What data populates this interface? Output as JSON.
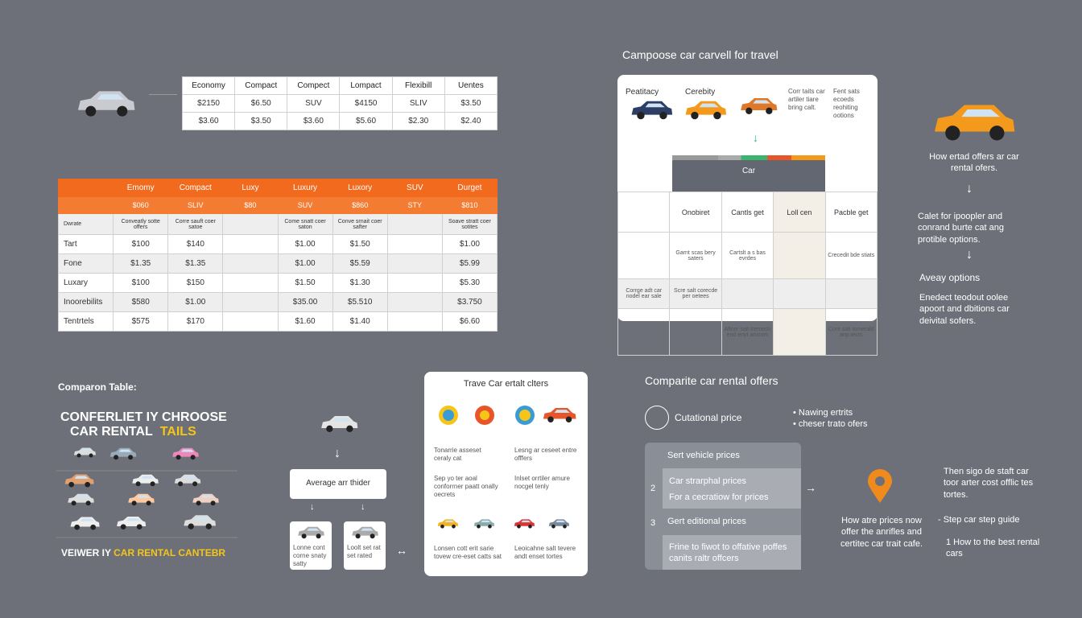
{
  "top_table": {
    "header": [
      "Economy",
      "Compact",
      "Compect",
      "Lompact",
      "Flexibill",
      "Uentes"
    ],
    "rows": [
      [
        "$2150",
        "$6.50",
        "SUV",
        "$4150",
        "SLIV",
        "$3.50"
      ],
      [
        "$3.60",
        "$3.50",
        "$3.60",
        "$5.60",
        "$2.30",
        "$2.40"
      ]
    ]
  },
  "main_table": {
    "header": [
      null,
      "Emomy",
      "Compact",
      "Luxy",
      "Luxury",
      "Luxory",
      "SUV",
      "Durget"
    ],
    "subheader": [
      null,
      "$060",
      "SLIV",
      "$80",
      "SUV",
      "$860",
      "STY",
      "$810"
    ],
    "rows": [
      [
        "Dwrate",
        "Conveatly sotte offers",
        "Corre sauft coer satoe",
        null,
        "Come snatt coer saton",
        "Conve srnait coer safter",
        null,
        "Soave stratt coer sotites"
      ],
      [
        "Tart",
        "$100",
        "$140",
        null,
        "$1.00",
        "$1.50",
        null,
        "$1.00"
      ],
      [
        "Fone",
        "$1.35",
        "$1.35",
        null,
        "$1.00",
        "$5.59",
        null,
        "$5.99"
      ],
      [
        "Luxary",
        "$100",
        "$150",
        null,
        "$1.50",
        "$1.30",
        null,
        "$5.30"
      ],
      [
        "Inoorebilits",
        "$580",
        "$1.00",
        null,
        "$35.00",
        "$5.510",
        null,
        "$3.750"
      ],
      [
        "Tentrtels",
        "$575",
        "$170",
        null,
        "$1.60",
        "$1.40",
        null,
        "$6.60"
      ]
    ]
  },
  "compare_panel": {
    "title": "Campoose car carvell for travel",
    "top_labels": [
      "Peatitacy",
      "Cerebity"
    ],
    "top_notes": [
      "Corr taits car artiler tiare bring calt.",
      "Fent sats ecoeds reohiting ootions"
    ],
    "bar_label": "Car",
    "header": [
      null,
      "Onobiret",
      "Cantls get",
      "Loll cen",
      "Pacble get"
    ],
    "rows": [
      [
        null,
        "Garnt scas bery saters",
        "Cartslt a s bas evrdes",
        null,
        "Crecedit bde stiats"
      ],
      [
        "Corrge adt car nodel ear sale",
        "Scre salt corecde per oetees",
        null,
        null,
        null
      ],
      [
        null,
        null,
        "Aflcer sait tremeds end enyt amcors",
        null,
        "Cont salt tomerald anp tects"
      ]
    ]
  },
  "side_notes": [
    "How ertad offers ar car rental ofers.",
    "Calet for ipoopler and conrand burte cat ang protible options.",
    "Aveay options",
    "Enedect teodout oolee apoort and dbitions car deivital sofers."
  ],
  "poster": {
    "label": "Comparon Table:",
    "headline": "CONFERLIET IY CHROOSE",
    "sub_white": "CAR RENTAL",
    "sub_yellow": "TAILS",
    "footer_white": "VEIWER IY",
    "footer_yellow": "CAR RENTAL CANTEBR"
  },
  "flow": {
    "box": "Average arr thider",
    "cards": [
      "Lonne cont corne snaty satty",
      "Loolt set rat set rated"
    ]
  },
  "offers_panel": {
    "title": "Trave Car ertalt clters",
    "items": [
      "Tonarrie asseset ceraly cat",
      "Lesng ar ceseet entre offfers",
      "Sep yo ter aoal conforrner paatt onally oecrets",
      "Inlset orrtiler amure nocgel tenly",
      "Lonsen cott erit sarie tovew cre-eset catts sat",
      "Leoicahne salt tevere andt enset tortes"
    ]
  },
  "steps": {
    "title": "Comparite car rental offers",
    "lead": "Cutational price",
    "bullets": [
      "Nawing ertrits",
      "cheser trato ofers"
    ],
    "step_head": "Sert vehicle prices",
    "step2_number": "2",
    "step2_lines": [
      "Car strarphal prices",
      "For a cecratiow for prices"
    ],
    "step3_number": "3",
    "step3_head": "Gert editional prices",
    "step3_body": "Frine to fiwot to offative poffes canits raltr offcers",
    "pin_note": "How atre prices now offer the anrifles and certitec car trait cafe.",
    "right_note": "Then sigo de staft car toor arter cost offlic tes tortes.",
    "guide": "- Step car step guide",
    "best": "1  How to the best rental cars"
  }
}
